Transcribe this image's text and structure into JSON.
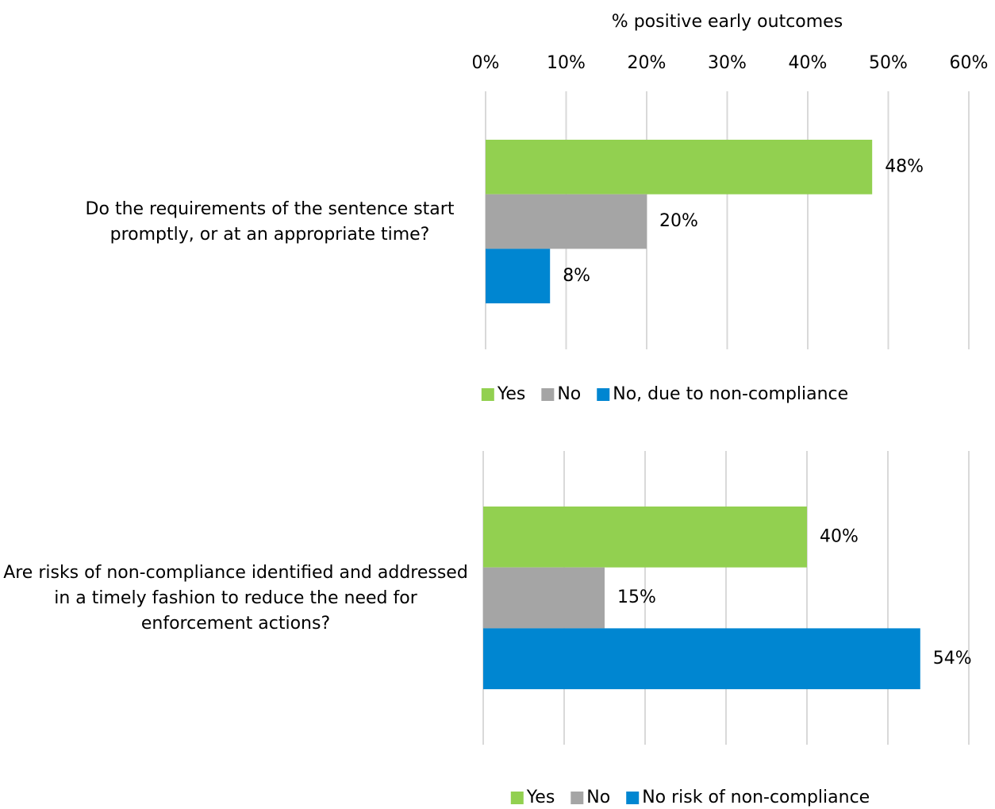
{
  "chart_data": [
    {
      "type": "bar",
      "orientation": "horizontal",
      "x_label": "% positive early outcomes",
      "categories": [
        "Do the requirements of the sentence start promptly, or at an appropriate time?"
      ],
      "series": [
        {
          "name": "Yes",
          "color": "#92d050",
          "values": [
            48
          ],
          "value_labels": [
            "48%"
          ]
        },
        {
          "name": "No",
          "color": "#a5a5a5",
          "values": [
            20
          ],
          "value_labels": [
            "20%"
          ]
        },
        {
          "name": "No, due to non-compliance",
          "color": "#0086d1",
          "values": [
            8
          ],
          "value_labels": [
            "8%"
          ]
        }
      ],
      "xlim": [
        0,
        60
      ],
      "xticks": [
        {
          "value": 0,
          "label": "0%"
        },
        {
          "value": 10,
          "label": "10%"
        },
        {
          "value": 20,
          "label": "20%"
        },
        {
          "value": 30,
          "label": "30%"
        },
        {
          "value": 40,
          "label": "40%"
        },
        {
          "value": 50,
          "label": "50%"
        },
        {
          "value": 60,
          "label": "60%"
        }
      ],
      "tick_labels": true,
      "grid": true,
      "legend": "bottom"
    },
    {
      "type": "bar",
      "orientation": "horizontal",
      "categories": [
        "Are risks of non-compliance identified and addressed in a timely fashion to reduce the need for enforcement actions?"
      ],
      "series": [
        {
          "name": "Yes",
          "color": "#92d050",
          "values": [
            40
          ],
          "value_labels": [
            "40%"
          ]
        },
        {
          "name": "No",
          "color": "#a5a5a5",
          "values": [
            15
          ],
          "value_labels": [
            "15%"
          ]
        },
        {
          "name": "No risk of non-compliance",
          "color": "#0086d1",
          "values": [
            54
          ],
          "value_labels": [
            "54%"
          ]
        }
      ],
      "xlim": [
        0,
        60
      ],
      "xticks": [
        0,
        10,
        20,
        30,
        40,
        50,
        60
      ],
      "tick_labels": false,
      "grid": true,
      "legend": "bottom"
    }
  ]
}
